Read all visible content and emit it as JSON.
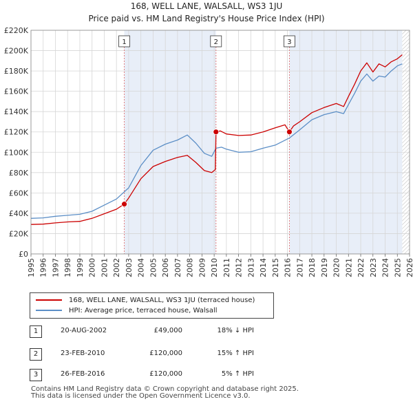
{
  "chart_data": {
    "type": "line",
    "title": "168, WELL LANE, WALSALL, WS3 1JU",
    "subtitle": "Price paid vs. HM Land Registry's House Price Index (HPI)",
    "xlabel": "",
    "ylabel": "",
    "xlim": [
      1995,
      2026
    ],
    "ylim": [
      0,
      220000
    ],
    "x_ticks": [
      "1995",
      "1996",
      "1997",
      "1998",
      "1999",
      "2000",
      "2001",
      "2002",
      "2003",
      "2004",
      "2005",
      "2006",
      "2007",
      "2008",
      "2009",
      "2010",
      "2011",
      "2012",
      "2013",
      "2014",
      "2015",
      "2016",
      "2017",
      "2018",
      "2019",
      "2020",
      "2021",
      "2022",
      "2023",
      "2024",
      "2025",
      "2026"
    ],
    "y_ticks": [
      {
        "value": 0,
        "label": "£0"
      },
      {
        "value": 20000,
        "label": "£20K"
      },
      {
        "value": 40000,
        "label": "£40K"
      },
      {
        "value": 60000,
        "label": "£60K"
      },
      {
        "value": 80000,
        "label": "£80K"
      },
      {
        "value": 100000,
        "label": "£100K"
      },
      {
        "value": 120000,
        "label": "£120K"
      },
      {
        "value": 140000,
        "label": "£140K"
      },
      {
        "value": 160000,
        "label": "£160K"
      },
      {
        "value": 180000,
        "label": "£180K"
      },
      {
        "value": 200000,
        "label": "£200K"
      },
      {
        "value": 220000,
        "label": "£220K"
      }
    ],
    "grid": true,
    "shaded_periods": [
      {
        "from": 2002.64,
        "to": 2010.15
      },
      {
        "from": 2016.16,
        "to": 2025.4
      }
    ],
    "hatched_after": 2025.4,
    "series": [
      {
        "name": "168, WELL LANE, WALSALL, WS3 1JU (terraced house)",
        "color": "#cc0000",
        "x": [
          1995.0,
          1996.0,
          1997.0,
          1998.0,
          1999.0,
          2000.0,
          2001.0,
          2002.0,
          2002.64,
          2003.0,
          2004.0,
          2005.0,
          2006.0,
          2007.0,
          2007.8,
          2008.5,
          2009.2,
          2009.8,
          2010.1,
          2010.15,
          2010.5,
          2011.0,
          2012.0,
          2013.0,
          2014.0,
          2015.0,
          2015.8,
          2016.16,
          2016.5,
          2017.0,
          2018.0,
          2019.0,
          2020.0,
          2020.6,
          2021.0,
          2021.5,
          2022.0,
          2022.5,
          2023.0,
          2023.5,
          2024.0,
          2024.5,
          2025.0,
          2025.4
        ],
        "values": [
          29000,
          29300,
          30500,
          31500,
          32000,
          35000,
          39500,
          44000,
          49000,
          55000,
          74000,
          86000,
          91000,
          95000,
          97000,
          90000,
          82000,
          80000,
          83000,
          120000,
          121000,
          118000,
          116500,
          117000,
          120000,
          124000,
          127000,
          120000,
          126000,
          130000,
          139000,
          144000,
          148000,
          145000,
          155000,
          167000,
          180000,
          188000,
          179000,
          187000,
          184000,
          189000,
          192000,
          196000
        ]
      },
      {
        "name": "HPI: Average price, terraced house, Walsall",
        "color": "#5b8ec6",
        "x": [
          1995.0,
          1996.0,
          1997.0,
          1998.0,
          1999.0,
          2000.0,
          2001.0,
          2002.0,
          2003.0,
          2004.0,
          2005.0,
          2006.0,
          2007.0,
          2007.8,
          2008.5,
          2009.2,
          2009.8,
          2010.15,
          2010.6,
          2011.0,
          2012.0,
          2013.0,
          2014.0,
          2015.0,
          2016.16,
          2017.0,
          2018.0,
          2019.0,
          2020.0,
          2020.6,
          2021.0,
          2021.5,
          2022.0,
          2022.5,
          2023.0,
          2023.5,
          2024.0,
          2024.5,
          2025.0,
          2025.4
        ],
        "values": [
          35000,
          35500,
          37000,
          38000,
          39000,
          42000,
          48000,
          54000,
          65000,
          87000,
          102000,
          108000,
          112000,
          117000,
          109000,
          99000,
          96000,
          104000,
          105000,
          103000,
          100000,
          100500,
          104000,
          107000,
          114000,
          122000,
          132000,
          137000,
          140000,
          138000,
          147000,
          158000,
          170000,
          177000,
          170000,
          175000,
          174000,
          180000,
          185000,
          187000
        ]
      }
    ],
    "sale_markers": [
      {
        "label": "1",
        "x": 2002.64,
        "value": 49000
      },
      {
        "label": "2",
        "x": 2010.15,
        "value": 120000
      },
      {
        "label": "3",
        "x": 2016.16,
        "value": 120000
      }
    ]
  },
  "legend": {
    "property_label": "168, WELL LANE, WALSALL, WS3 1JU (terraced house)",
    "hpi_label": "HPI: Average price, terraced house, Walsall",
    "property_color": "#cc0000",
    "hpi_color": "#5b8ec6"
  },
  "sales": [
    {
      "num": "1",
      "date": "20-AUG-2002",
      "price": "£49,000",
      "hpi": "18% ↓ HPI"
    },
    {
      "num": "2",
      "date": "23-FEB-2010",
      "price": "£120,000",
      "hpi": "15% ↑ HPI"
    },
    {
      "num": "3",
      "date": "26-FEB-2016",
      "price": "£120,000",
      "hpi": "5% ↑ HPI"
    }
  ],
  "footer": {
    "line1": "Contains HM Land Registry data © Crown copyright and database right 2025.",
    "line2": "This data is licensed under the Open Government Licence v3.0."
  }
}
